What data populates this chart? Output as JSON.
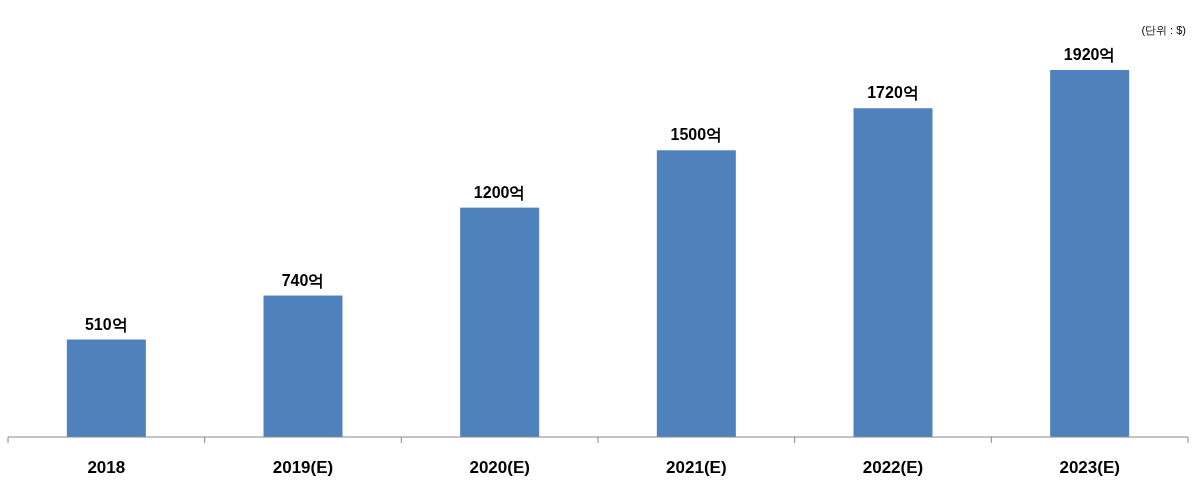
{
  "chart_data": {
    "type": "bar",
    "categories": [
      "2018",
      "2019(E)",
      "2020(E)",
      "2021(E)",
      "2022(E)",
      "2023(E)"
    ],
    "values": [
      510,
      740,
      1200,
      1500,
      1720,
      1920
    ],
    "value_labels": [
      "510억",
      "740억",
      "1200억",
      "1500억",
      "1720억",
      "1920억"
    ],
    "color": "#4f81bd",
    "relative": false,
    "annotations": [
      "(단위 : $)"
    ]
  }
}
